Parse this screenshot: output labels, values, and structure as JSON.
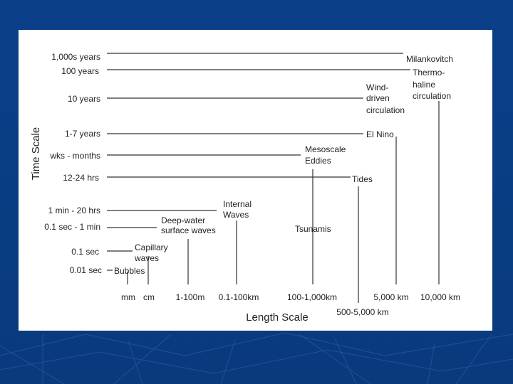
{
  "axes": {
    "y_title": "Time Scale",
    "x_title": "Length Scale"
  },
  "time_labels": [
    "1,000s years",
    "100 years",
    "10 years",
    "1-7 years",
    "wks - months",
    "12-24 hrs",
    "1 min - 20 hrs",
    "0.1 sec - 1 min",
    "0.1 sec",
    "0.01 sec"
  ],
  "length_labels": [
    "mm",
    "cm",
    "1-100m",
    "0.1-100km",
    "100-1,000km",
    "500-5,000 km",
    "5,000 km",
    "10,000 km"
  ],
  "phenomena": {
    "bubbles": "Bubbles",
    "capillary": [
      "Capillary",
      "waves"
    ],
    "deep_water": [
      "Deep-water",
      "surface waves"
    ],
    "internal": [
      "Internal",
      "Waves"
    ],
    "tsunamis": "Tsunamis",
    "mesoscale": [
      "Mesoscale",
      "Eddies"
    ],
    "tides": "Tides",
    "el_nino": "El Nino",
    "wind_driven": [
      "Wind-",
      "driven",
      "circulation"
    ],
    "thermohaline": [
      "Thermo-",
      "haline",
      "circulation"
    ],
    "milankovitch": "Milankovitch"
  },
  "colors": {
    "background": "#0a3f86",
    "panel": "#ffffff",
    "ink": "#222222"
  }
}
